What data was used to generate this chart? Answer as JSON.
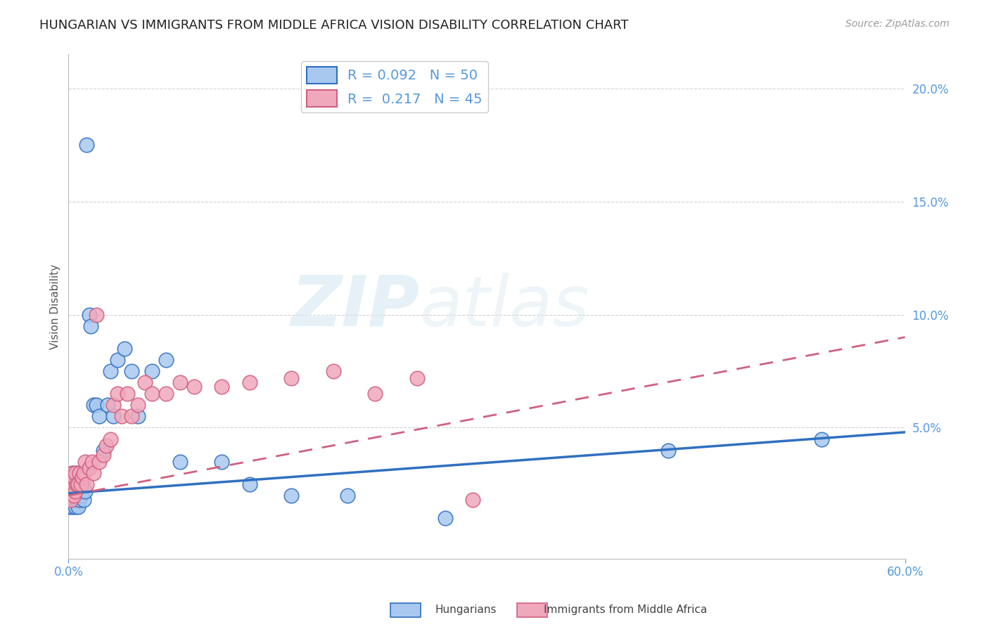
{
  "title": "HUNGARIAN VS IMMIGRANTS FROM MIDDLE AFRICA VISION DISABILITY CORRELATION CHART",
  "source": "Source: ZipAtlas.com",
  "ylabel": "Vision Disability",
  "xlim": [
    0.0,
    0.6
  ],
  "ylim": [
    -0.008,
    0.215
  ],
  "r_hungarian": 0.092,
  "n_hungarian": 50,
  "r_immigrants": 0.217,
  "n_immigrants": 45,
  "color_hungarian": "#a8c8f0",
  "color_immigrants": "#f0a8bc",
  "color_hungarian_line": "#3070c0",
  "color_immigrants_line": "#d06080",
  "background_color": "#FFFFFF",
  "watermark_zip": "ZIP",
  "watermark_atlas": "atlas",
  "title_fontsize": 13,
  "axis_label_color": "#5599dd",
  "hungarian_x": [
    0.001,
    0.001,
    0.002,
    0.002,
    0.002,
    0.003,
    0.003,
    0.003,
    0.003,
    0.004,
    0.004,
    0.004,
    0.005,
    0.005,
    0.005,
    0.006,
    0.006,
    0.007,
    0.007,
    0.008,
    0.008,
    0.009,
    0.01,
    0.01,
    0.011,
    0.012,
    0.013,
    0.015,
    0.016,
    0.018,
    0.02,
    0.022,
    0.025,
    0.028,
    0.03,
    0.032,
    0.035,
    0.04,
    0.045,
    0.05,
    0.06,
    0.07,
    0.08,
    0.11,
    0.13,
    0.16,
    0.2,
    0.27,
    0.43,
    0.54
  ],
  "hungarian_y": [
    0.02,
    0.015,
    0.022,
    0.018,
    0.025,
    0.015,
    0.02,
    0.025,
    0.03,
    0.018,
    0.022,
    0.028,
    0.015,
    0.02,
    0.025,
    0.018,
    0.03,
    0.015,
    0.022,
    0.018,
    0.025,
    0.02,
    0.03,
    0.025,
    0.018,
    0.022,
    0.175,
    0.1,
    0.095,
    0.06,
    0.06,
    0.055,
    0.04,
    0.06,
    0.075,
    0.055,
    0.08,
    0.085,
    0.075,
    0.055,
    0.075,
    0.08,
    0.035,
    0.035,
    0.025,
    0.02,
    0.02,
    0.01,
    0.04,
    0.045
  ],
  "immigrants_x": [
    0.001,
    0.001,
    0.002,
    0.002,
    0.002,
    0.003,
    0.003,
    0.004,
    0.004,
    0.005,
    0.005,
    0.006,
    0.007,
    0.008,
    0.009,
    0.01,
    0.011,
    0.012,
    0.013,
    0.015,
    0.017,
    0.018,
    0.02,
    0.022,
    0.025,
    0.027,
    0.03,
    0.032,
    0.035,
    0.038,
    0.042,
    0.045,
    0.05,
    0.055,
    0.06,
    0.07,
    0.08,
    0.09,
    0.11,
    0.13,
    0.16,
    0.19,
    0.22,
    0.25,
    0.29
  ],
  "immigrants_y": [
    0.02,
    0.025,
    0.018,
    0.022,
    0.028,
    0.025,
    0.03,
    0.02,
    0.028,
    0.022,
    0.03,
    0.025,
    0.025,
    0.03,
    0.025,
    0.028,
    0.03,
    0.035,
    0.025,
    0.032,
    0.035,
    0.03,
    0.1,
    0.035,
    0.038,
    0.042,
    0.045,
    0.06,
    0.065,
    0.055,
    0.065,
    0.055,
    0.06,
    0.07,
    0.065,
    0.065,
    0.07,
    0.068,
    0.068,
    0.07,
    0.072,
    0.075,
    0.065,
    0.072,
    0.018
  ],
  "trend_h_x0": 0.0,
  "trend_h_x1": 0.6,
  "trend_h_y0": 0.021,
  "trend_h_y1": 0.048,
  "trend_i_x0": 0.0,
  "trend_i_x1": 0.6,
  "trend_i_y0": 0.02,
  "trend_i_y1": 0.09
}
